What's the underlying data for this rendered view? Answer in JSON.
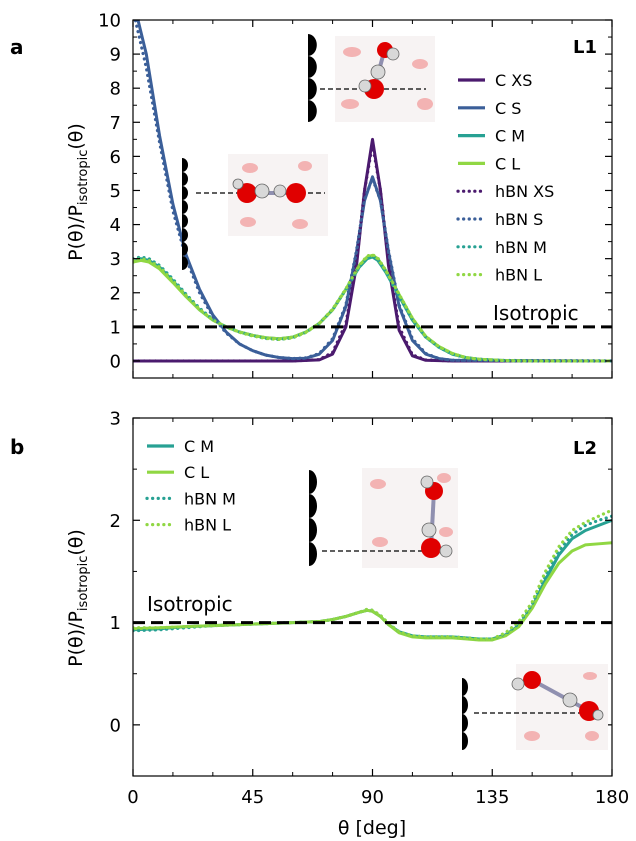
{
  "figure": {
    "panel_labels": [
      "a",
      "b"
    ],
    "xlabel": "θ [deg]",
    "ylabel_main": "P(θ)/P",
    "ylabel_sub": "isotropic",
    "ylabel_tail": "(θ)",
    "isotropic_label": "Isotropic"
  },
  "colors": {
    "XS": "#4b1a6e",
    "S": "#3b5f99",
    "M": "#27a193",
    "L": "#90d743",
    "isotropic": "#000000"
  },
  "chart_data": [
    {
      "type": "line",
      "panel": "a",
      "tag": "L1",
      "xlim": [
        0,
        180
      ],
      "ylim": [
        -0.5,
        10
      ],
      "xticks": [
        0,
        45,
        90,
        135,
        180
      ],
      "yticks": [
        0,
        1,
        2,
        3,
        4,
        5,
        6,
        7,
        8,
        9,
        10
      ],
      "isotropic_line": 1,
      "legend": "top-right",
      "series": [
        {
          "name": "C XS",
          "color_key": "XS",
          "style": "solid",
          "x": [
            0,
            60,
            70,
            75,
            80,
            84,
            87,
            90,
            93,
            96,
            100,
            105,
            110,
            120,
            180
          ],
          "y": [
            0,
            0,
            0.03,
            0.2,
            1.0,
            2.8,
            5.0,
            6.5,
            5.0,
            2.8,
            0.9,
            0.15,
            0.02,
            0,
            0
          ]
        },
        {
          "name": "C S",
          "color_key": "S",
          "style": "solid",
          "x": [
            0,
            5,
            10,
            15,
            20,
            25,
            30,
            35,
            40,
            45,
            50,
            55,
            60,
            65,
            70,
            75,
            80,
            84,
            87,
            90,
            93,
            96,
            100,
            105,
            110,
            115,
            120,
            180
          ],
          "y": [
            10.6,
            9.0,
            6.6,
            4.6,
            3.1,
            2.1,
            1.35,
            0.85,
            0.5,
            0.3,
            0.17,
            0.1,
            0.07,
            0.08,
            0.2,
            0.6,
            1.6,
            3.2,
            4.7,
            5.4,
            4.7,
            3.2,
            1.6,
            0.6,
            0.2,
            0.07,
            0.02,
            0
          ]
        },
        {
          "name": "C M",
          "color_key": "M",
          "style": "solid",
          "x": [
            0,
            3,
            6,
            10,
            15,
            20,
            25,
            30,
            35,
            40,
            45,
            50,
            55,
            60,
            65,
            70,
            75,
            80,
            85,
            88,
            90,
            92,
            95,
            100,
            105,
            110,
            115,
            120,
            125,
            130,
            140,
            150,
            160,
            170,
            180
          ],
          "y": [
            2.9,
            3.0,
            2.95,
            2.75,
            2.35,
            1.9,
            1.5,
            1.2,
            1.0,
            0.85,
            0.75,
            0.68,
            0.65,
            0.7,
            0.85,
            1.1,
            1.5,
            2.1,
            2.75,
            3.0,
            3.05,
            2.95,
            2.6,
            1.9,
            1.2,
            0.7,
            0.4,
            0.2,
            0.1,
            0.05,
            0.01,
            0,
            0,
            0,
            0
          ]
        },
        {
          "name": "C L",
          "color_key": "L",
          "style": "solid",
          "x": [
            0,
            3,
            6,
            10,
            15,
            20,
            25,
            30,
            35,
            40,
            45,
            50,
            55,
            60,
            65,
            70,
            75,
            80,
            85,
            88,
            90,
            92,
            95,
            100,
            105,
            110,
            115,
            120,
            125,
            130,
            140,
            150,
            160,
            170,
            180
          ],
          "y": [
            2.9,
            2.95,
            2.9,
            2.7,
            2.3,
            1.88,
            1.5,
            1.2,
            1.0,
            0.85,
            0.75,
            0.68,
            0.65,
            0.7,
            0.85,
            1.1,
            1.5,
            2.1,
            2.8,
            3.05,
            3.1,
            3.0,
            2.65,
            1.95,
            1.25,
            0.72,
            0.42,
            0.22,
            0.1,
            0.05,
            0.01,
            0,
            0,
            0,
            0
          ]
        },
        {
          "name": "hBN XS",
          "color_key": "XS",
          "style": "dotted",
          "x": [
            0,
            60,
            70,
            75,
            80,
            84,
            87,
            90,
            93,
            96,
            100,
            105,
            110,
            120,
            180
          ],
          "y": [
            0,
            0,
            0.04,
            0.25,
            1.1,
            2.9,
            5.0,
            6.35,
            5.0,
            2.9,
            1.0,
            0.18,
            0.03,
            0,
            0
          ]
        },
        {
          "name": "hBN S",
          "color_key": "S",
          "style": "dotted",
          "x": [
            0,
            5,
            10,
            15,
            20,
            25,
            30,
            35,
            40,
            45,
            50,
            55,
            60,
            65,
            70,
            75,
            80,
            84,
            87,
            90,
            93,
            96,
            100,
            105,
            110,
            115,
            120,
            180
          ],
          "y": [
            10.3,
            8.6,
            6.4,
            4.4,
            3.0,
            2.0,
            1.3,
            0.82,
            0.5,
            0.3,
            0.17,
            0.1,
            0.07,
            0.09,
            0.22,
            0.65,
            1.65,
            3.25,
            4.75,
            5.35,
            4.7,
            3.25,
            1.65,
            0.65,
            0.22,
            0.07,
            0.02,
            0
          ]
        },
        {
          "name": "hBN M",
          "color_key": "M",
          "style": "dotted",
          "x": [
            0,
            3,
            6,
            10,
            15,
            20,
            25,
            30,
            35,
            40,
            45,
            50,
            55,
            60,
            65,
            70,
            75,
            80,
            85,
            88,
            90,
            92,
            95,
            100,
            105,
            110,
            115,
            120,
            125,
            130,
            140,
            150,
            160,
            170,
            180
          ],
          "y": [
            3.0,
            3.05,
            3.0,
            2.8,
            2.4,
            1.95,
            1.55,
            1.22,
            1.0,
            0.85,
            0.74,
            0.66,
            0.63,
            0.68,
            0.84,
            1.1,
            1.5,
            2.1,
            2.75,
            3.02,
            3.08,
            2.98,
            2.62,
            1.9,
            1.2,
            0.7,
            0.4,
            0.2,
            0.1,
            0.05,
            0.01,
            0,
            0,
            0,
            0
          ]
        },
        {
          "name": "hBN L",
          "color_key": "L",
          "style": "dotted",
          "x": [
            0,
            3,
            6,
            10,
            15,
            20,
            25,
            30,
            35,
            40,
            45,
            50,
            55,
            60,
            65,
            70,
            75,
            80,
            85,
            88,
            90,
            92,
            95,
            100,
            105,
            110,
            115,
            120,
            125,
            130,
            140,
            150,
            160,
            170,
            180
          ],
          "y": [
            2.95,
            3.0,
            2.95,
            2.75,
            2.35,
            1.92,
            1.52,
            1.2,
            1.0,
            0.84,
            0.73,
            0.66,
            0.63,
            0.68,
            0.84,
            1.1,
            1.52,
            2.12,
            2.8,
            3.08,
            3.12,
            3.02,
            2.66,
            1.96,
            1.25,
            0.72,
            0.42,
            0.22,
            0.1,
            0.05,
            0.01,
            0,
            0,
            0,
            0
          ]
        }
      ]
    },
    {
      "type": "line",
      "panel": "b",
      "tag": "L2",
      "xlim": [
        0,
        180
      ],
      "ylim": [
        -0.5,
        3
      ],
      "xticks": [
        0,
        45,
        90,
        135,
        180
      ],
      "yticks": [
        0,
        1,
        2,
        3
      ],
      "isotropic_line": 1,
      "legend": "top-left",
      "series": [
        {
          "name": "C M",
          "color_key": "M",
          "style": "solid",
          "x": [
            0,
            10,
            20,
            30,
            40,
            50,
            60,
            70,
            75,
            80,
            85,
            88,
            90,
            93,
            96,
            100,
            105,
            110,
            115,
            120,
            125,
            130,
            135,
            140,
            145,
            150,
            155,
            160,
            165,
            170,
            175,
            180
          ],
          "y": [
            0.93,
            0.94,
            0.96,
            0.97,
            0.98,
            0.99,
            1.0,
            1.01,
            1.03,
            1.06,
            1.1,
            1.12,
            1.11,
            1.06,
            0.98,
            0.91,
            0.87,
            0.86,
            0.86,
            0.86,
            0.85,
            0.84,
            0.84,
            0.88,
            0.97,
            1.15,
            1.42,
            1.66,
            1.82,
            1.9,
            1.95,
            2.0
          ]
        },
        {
          "name": "C L",
          "color_key": "L",
          "style": "solid",
          "x": [
            0,
            10,
            20,
            30,
            40,
            50,
            60,
            70,
            75,
            80,
            85,
            88,
            90,
            93,
            96,
            100,
            105,
            110,
            115,
            120,
            125,
            130,
            135,
            140,
            145,
            150,
            155,
            160,
            165,
            170,
            175,
            180
          ],
          "y": [
            0.94,
            0.95,
            0.96,
            0.97,
            0.98,
            0.99,
            1.0,
            1.01,
            1.03,
            1.06,
            1.1,
            1.12,
            1.11,
            1.06,
            0.98,
            0.9,
            0.86,
            0.85,
            0.85,
            0.85,
            0.84,
            0.83,
            0.83,
            0.87,
            0.96,
            1.14,
            1.38,
            1.58,
            1.7,
            1.76,
            1.77,
            1.78
          ]
        },
        {
          "name": "hBN M",
          "color_key": "M",
          "style": "dotted",
          "x": [
            0,
            10,
            20,
            30,
            40,
            50,
            60,
            70,
            75,
            80,
            85,
            88,
            90,
            93,
            96,
            100,
            105,
            110,
            115,
            120,
            125,
            130,
            135,
            140,
            145,
            150,
            155,
            160,
            165,
            170,
            175,
            180
          ],
          "y": [
            0.92,
            0.93,
            0.95,
            0.97,
            0.98,
            0.99,
            1.0,
            1.01,
            1.03,
            1.06,
            1.1,
            1.13,
            1.12,
            1.07,
            0.99,
            0.91,
            0.87,
            0.86,
            0.86,
            0.86,
            0.85,
            0.84,
            0.84,
            0.89,
            0.99,
            1.18,
            1.46,
            1.7,
            1.86,
            1.95,
            2.0,
            2.04
          ]
        },
        {
          "name": "hBN L",
          "color_key": "L",
          "style": "dotted",
          "x": [
            0,
            10,
            20,
            30,
            40,
            50,
            60,
            70,
            75,
            80,
            85,
            88,
            90,
            93,
            96,
            100,
            105,
            110,
            115,
            120,
            125,
            130,
            135,
            140,
            145,
            150,
            155,
            160,
            165,
            170,
            175,
            180
          ],
          "y": [
            0.95,
            0.95,
            0.96,
            0.97,
            0.98,
            0.99,
            1.0,
            1.01,
            1.03,
            1.06,
            1.1,
            1.13,
            1.12,
            1.07,
            0.99,
            0.91,
            0.87,
            0.86,
            0.86,
            0.86,
            0.85,
            0.84,
            0.84,
            0.9,
            1.01,
            1.2,
            1.5,
            1.74,
            1.9,
            1.98,
            2.04,
            2.1
          ]
        }
      ]
    }
  ]
}
